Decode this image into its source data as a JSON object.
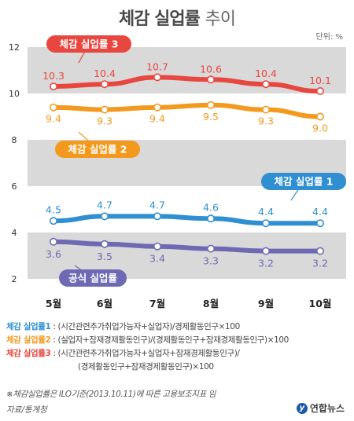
{
  "header": {
    "title_bold": "체감 실업률",
    "title_light": "추이",
    "unit": "단위: %"
  },
  "chart_data": {
    "type": "line",
    "categories": [
      "5월",
      "6월",
      "7월",
      "8월",
      "9월",
      "10월"
    ],
    "ylim": [
      2,
      12
    ],
    "yticks": [
      2,
      4,
      6,
      8,
      10,
      12
    ],
    "series": [
      {
        "name": "체감 실업률 3",
        "color": "#e8473f",
        "values": [
          10.3,
          10.4,
          10.7,
          10.6,
          10.4,
          10.1
        ],
        "labels": [
          "10.3",
          "10.4",
          "10.7",
          "10.6",
          "10.4",
          "10.1"
        ]
      },
      {
        "name": "체감 실업률 2",
        "color": "#f39a1e",
        "values": [
          9.4,
          9.3,
          9.4,
          9.5,
          9.3,
          9.0
        ],
        "labels": [
          "9.4",
          "9.3",
          "9.4",
          "9.5",
          "9.3",
          "9.0"
        ]
      },
      {
        "name": "체감 실업률 1",
        "color": "#2f8fd0",
        "values": [
          4.5,
          4.7,
          4.7,
          4.6,
          4.4,
          4.4
        ],
        "labels": [
          "4.5",
          "4.7",
          "4.7",
          "4.6",
          "4.4",
          "4.4"
        ]
      },
      {
        "name": "공식 실업률",
        "color": "#6d6ab3",
        "values": [
          3.6,
          3.5,
          3.4,
          3.3,
          3.2,
          3.2
        ],
        "labels": [
          "3.6",
          "3.5",
          "3.4",
          "3.3",
          "3.2",
          "3.2"
        ]
      }
    ],
    "bands": [
      [
        2,
        4
      ],
      [
        6,
        8
      ],
      [
        10,
        12
      ]
    ]
  },
  "definitions": [
    {
      "key": "체감 실업률1",
      "color": "#2f8fd0",
      "lines": [
        ": (시간관련추가취업가능자+실업자)/경제활동인구×100"
      ]
    },
    {
      "key": "체감 실업률2",
      "color": "#f39a1e",
      "lines": [
        ": (실업자+잠재경제활동인구)/(경제활동인구+잠재경제활동인구)×100"
      ]
    },
    {
      "key": "체감 실업률3",
      "color": "#e8473f",
      "lines": [
        ": (시간관련추가취업가능자+실업자+잠재경제활동인구)/",
        "(경제활동인구+잠재경제활동인구)×100"
      ]
    }
  ],
  "note": "※체감실업률은 ILO기준(2013.10.11)에 따른 고용보조지표 임",
  "source": "자료/통계청",
  "brand": {
    "mark": "y",
    "name": "연합뉴스"
  }
}
